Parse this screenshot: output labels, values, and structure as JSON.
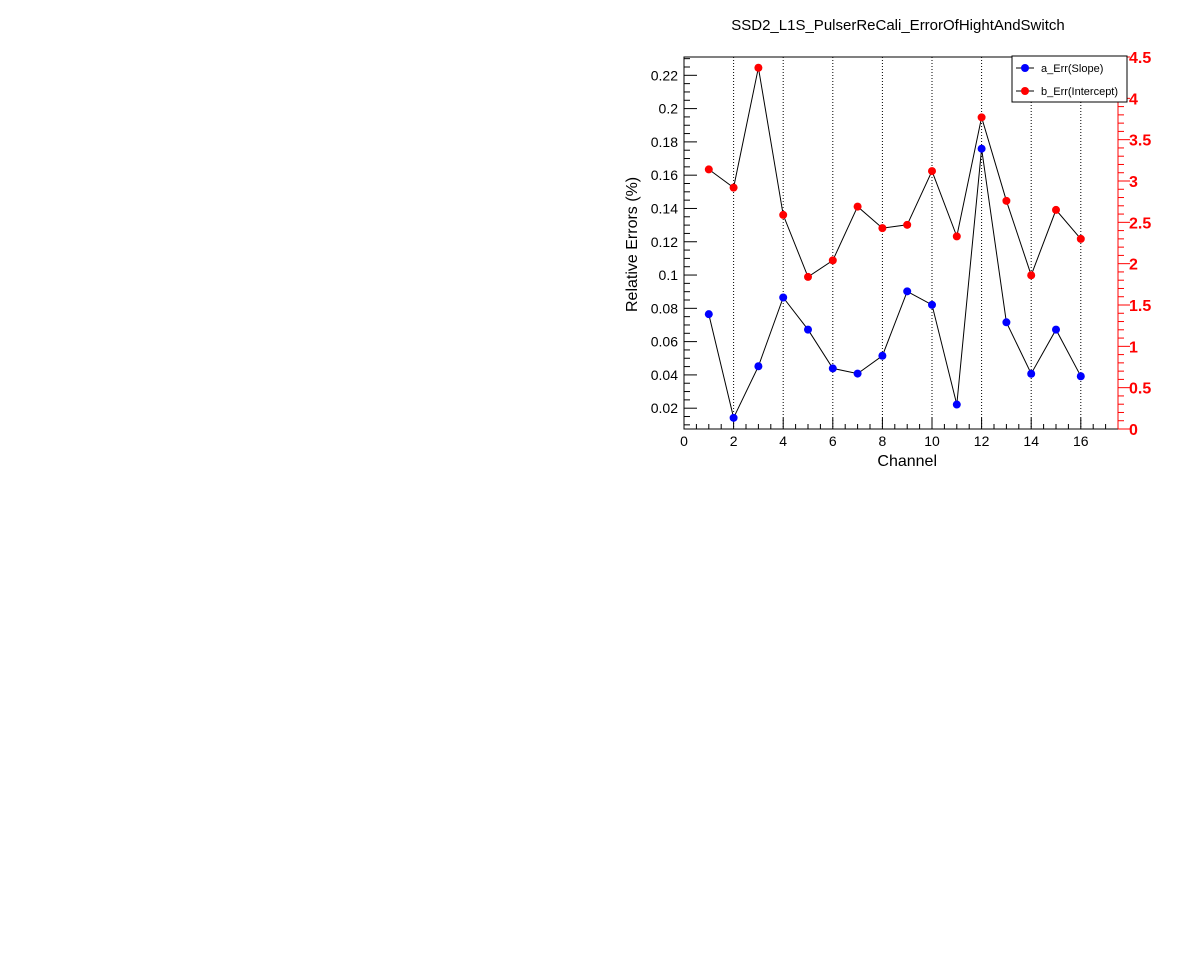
{
  "chart_data": {
    "type": "line",
    "title": "SSD2_L1S_PulserReCali_ErrorOfHightAndSwitch",
    "xlabel": "Channel",
    "ylabel": "Relative Errors (%)",
    "y2label": "",
    "xlim": [
      0,
      17.5
    ],
    "ylim": [
      0.0075,
      0.231
    ],
    "y2lim": [
      0,
      4.5
    ],
    "xticks": [
      0,
      2,
      4,
      6,
      8,
      10,
      12,
      14,
      16
    ],
    "xtick_labels": [
      "0",
      "2",
      "4",
      "6",
      "8",
      "10",
      "12",
      "14",
      "16"
    ],
    "yticks": [
      0.02,
      0.04,
      0.06,
      0.08,
      0.1,
      0.12,
      0.14,
      0.16,
      0.18,
      0.2,
      0.22
    ],
    "ytick_labels": [
      "0.02",
      "0.04",
      "0.06",
      "0.08",
      "0.1",
      "0.12",
      "0.14",
      "0.16",
      "0.18",
      "0.2",
      "0.22"
    ],
    "y2ticks": [
      0,
      0.5,
      1,
      1.5,
      2,
      2.5,
      3,
      3.5,
      4,
      4.5
    ],
    "y2tick_labels": [
      "0",
      "0.5",
      "1",
      "1.5",
      "2",
      "2.5",
      "3",
      "3.5",
      "4",
      "4.5"
    ],
    "grid": "vertical-dotted",
    "legend_position": "top-right",
    "x": [
      1,
      2,
      3,
      4,
      5,
      6,
      7,
      8,
      9,
      10,
      11,
      12,
      13,
      14,
      15,
      16
    ],
    "series": [
      {
        "name": "a_Err(Slope)",
        "axis": "left",
        "color": "#0000ff",
        "values": [
          0.0765,
          0.0142,
          0.0452,
          0.0865,
          0.0672,
          0.0439,
          0.0408,
          0.0515,
          0.0902,
          0.0821,
          0.0222,
          0.1759,
          0.0716,
          0.0407,
          0.0672,
          0.0392
        ]
      },
      {
        "name": "b_Err(Intercept)",
        "axis": "right",
        "color": "#ff0000",
        "values": [
          3.14,
          2.92,
          4.37,
          2.59,
          1.84,
          2.04,
          2.69,
          2.43,
          2.47,
          3.12,
          2.33,
          3.77,
          2.76,
          1.86,
          2.65,
          2.3
        ]
      }
    ],
    "axis_colors": {
      "left": "#000000",
      "right": "#ff0000"
    }
  }
}
